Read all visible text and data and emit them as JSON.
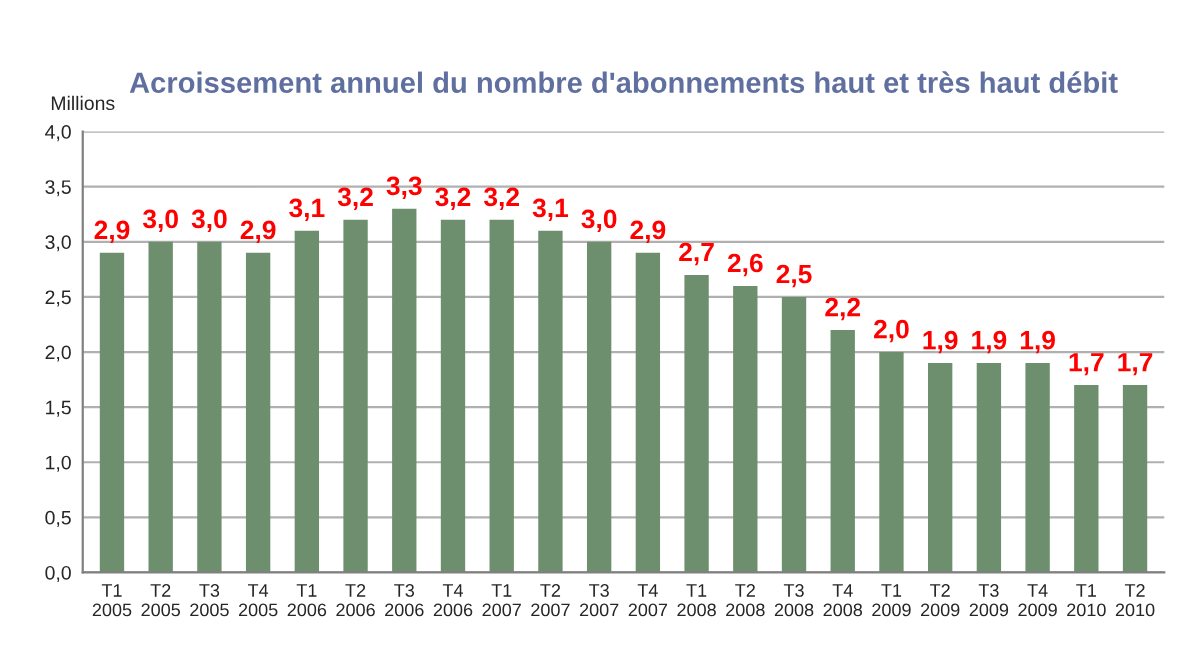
{
  "chart_data": {
    "type": "bar",
    "title": "Acroissement annuel du nombre d'abonnements haut et très haut débit",
    "ylabel": "Millions",
    "categories": [
      "T1\n2005",
      "T2\n2005",
      "T3\n2005",
      "T4\n2005",
      "T1\n2006",
      "T2\n2006",
      "T3\n2006",
      "T4\n2006",
      "T1\n2007",
      "T2\n2007",
      "T3\n2007",
      "T4\n2007",
      "T1\n2008",
      "T2\n2008",
      "T3\n2008",
      "T4\n2008",
      "T1\n2009",
      "T2\n2009",
      "T3\n2009",
      "T4\n2009",
      "T1\n2010",
      "T2\n2010"
    ],
    "values": [
      2.9,
      3.0,
      3.0,
      2.9,
      3.1,
      3.2,
      3.3,
      3.2,
      3.2,
      3.1,
      3.0,
      2.9,
      2.7,
      2.6,
      2.5,
      2.2,
      2.0,
      1.9,
      1.9,
      1.9,
      1.7,
      1.7
    ],
    "value_labels": [
      "2,9",
      "3,0",
      "3,0",
      "2,9",
      "3,1",
      "3,2",
      "3,3",
      "3,2",
      "3,2",
      "3,1",
      "3,0",
      "2,9",
      "2,7",
      "2,6",
      "2,5",
      "2,2",
      "2,0",
      "1,9",
      "1,9",
      "1,9",
      "1,7",
      "1,7"
    ],
    "color": "#6e8f6e",
    "ylim": [
      0,
      4
    ],
    "yticks": [
      {
        "value": 0,
        "label": "0,0"
      },
      {
        "value": 0.5,
        "label": "0,5"
      },
      {
        "value": 1,
        "label": "1,0"
      },
      {
        "value": 1.5,
        "label": "1,5"
      },
      {
        "value": 2,
        "label": "2,0"
      },
      {
        "value": 2.5,
        "label": "2,5"
      },
      {
        "value": 3,
        "label": "3,0"
      },
      {
        "value": 3.5,
        "label": "3,5"
      },
      {
        "value": 4,
        "label": "4,0"
      }
    ],
    "grid": "y",
    "legend": false
  }
}
